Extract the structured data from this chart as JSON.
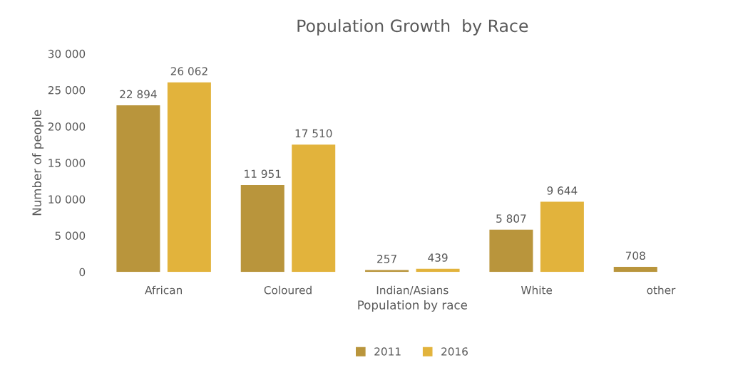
{
  "chart_data": {
    "type": "bar",
    "title": "Population Growth  by Race",
    "xlabel": "Population by race",
    "ylabel": "Number of people",
    "categories": [
      "African",
      "Coloured",
      "Indian/Asians",
      "White",
      "other"
    ],
    "series": [
      {
        "name": "2011",
        "color": "#b9953c",
        "values": [
          22894,
          11951,
          257,
          5807,
          708
        ],
        "value_labels": [
          "22 894",
          "11 951",
          "257",
          "5 807",
          "708"
        ]
      },
      {
        "name": "2016",
        "color": "#e2b33c",
        "values": [
          26062,
          17510,
          439,
          9644,
          null
        ],
        "value_labels": [
          "26 062",
          "17 510",
          "439",
          "9 644",
          null
        ]
      }
    ],
    "ylim": [
      0,
      30000
    ],
    "yticks": [
      {
        "value": 0,
        "label": "0"
      },
      {
        "value": 5000,
        "label": "5 000"
      },
      {
        "value": 10000,
        "label": "10 000"
      },
      {
        "value": 15000,
        "label": "15 000"
      },
      {
        "value": 20000,
        "label": "20 000"
      },
      {
        "value": 25000,
        "label": "25 000"
      },
      {
        "value": 30000,
        "label": "30 000"
      }
    ],
    "grid": false,
    "legend": "bottom"
  }
}
